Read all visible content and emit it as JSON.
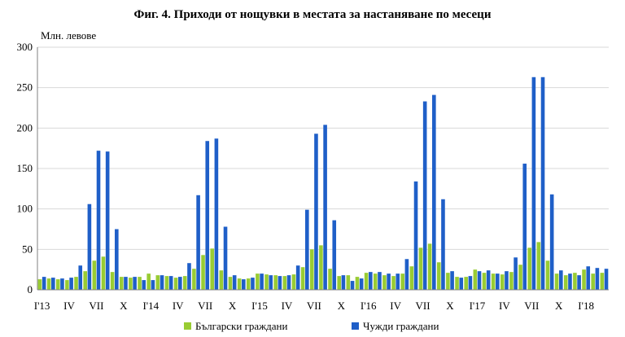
{
  "chart_data": {
    "type": "bar",
    "title": "Фиг. 4. Приходи от нощувки в местата за настаняване по месеци",
    "ylabel": "Млн. левове",
    "ylim": [
      0,
      300
    ],
    "yticks": [
      0,
      50,
      100,
      150,
      200,
      250,
      300
    ],
    "grid": true,
    "legend_position": "bottom",
    "colors": {
      "bulgarian": "#99cc33",
      "foreign": "#1f5fc8"
    },
    "x_tick_labels": [
      {
        "index": 0,
        "label": "I'13"
      },
      {
        "index": 3,
        "label": "IV"
      },
      {
        "index": 6,
        "label": "VII"
      },
      {
        "index": 9,
        "label": "X"
      },
      {
        "index": 12,
        "label": "I'14"
      },
      {
        "index": 15,
        "label": "IV"
      },
      {
        "index": 18,
        "label": "VII"
      },
      {
        "index": 21,
        "label": "X"
      },
      {
        "index": 24,
        "label": "I'15"
      },
      {
        "index": 27,
        "label": "IV"
      },
      {
        "index": 30,
        "label": "VII"
      },
      {
        "index": 33,
        "label": "X"
      },
      {
        "index": 36,
        "label": "I'16"
      },
      {
        "index": 39,
        "label": "IV"
      },
      {
        "index": 42,
        "label": "VII"
      },
      {
        "index": 45,
        "label": "X"
      },
      {
        "index": 48,
        "label": "I'17"
      },
      {
        "index": 51,
        "label": "IV"
      },
      {
        "index": 54,
        "label": "VII"
      },
      {
        "index": 57,
        "label": "X"
      },
      {
        "index": 60,
        "label": "I'18"
      }
    ],
    "series": [
      {
        "name": "Български граждани",
        "values": [
          13,
          14,
          13,
          12,
          16,
          23,
          36,
          41,
          22,
          16,
          15,
          16,
          20,
          18,
          17,
          15,
          17,
          26,
          43,
          51,
          24,
          16,
          14,
          14,
          20,
          19,
          18,
          17,
          19,
          28,
          50,
          55,
          26,
          17,
          18,
          16,
          21,
          20,
          18,
          17,
          20,
          29,
          52,
          57,
          34,
          21,
          16,
          16,
          25,
          21,
          20,
          19,
          22,
          31,
          52,
          59,
          36,
          20,
          18,
          21,
          25,
          20,
          21
        ]
      },
      {
        "name": "Чужди граждани",
        "values": [
          16,
          15,
          14,
          15,
          30,
          106,
          172,
          171,
          75,
          16,
          16,
          12,
          12,
          18,
          17,
          16,
          33,
          117,
          184,
          187,
          78,
          18,
          13,
          15,
          20,
          18,
          17,
          18,
          30,
          99,
          193,
          204,
          86,
          18,
          11,
          14,
          22,
          22,
          20,
          20,
          38,
          134,
          233,
          241,
          112,
          23,
          15,
          17,
          23,
          24,
          20,
          23,
          40,
          156,
          263,
          263,
          118,
          24,
          20,
          18,
          29,
          27,
          26
        ]
      }
    ]
  }
}
